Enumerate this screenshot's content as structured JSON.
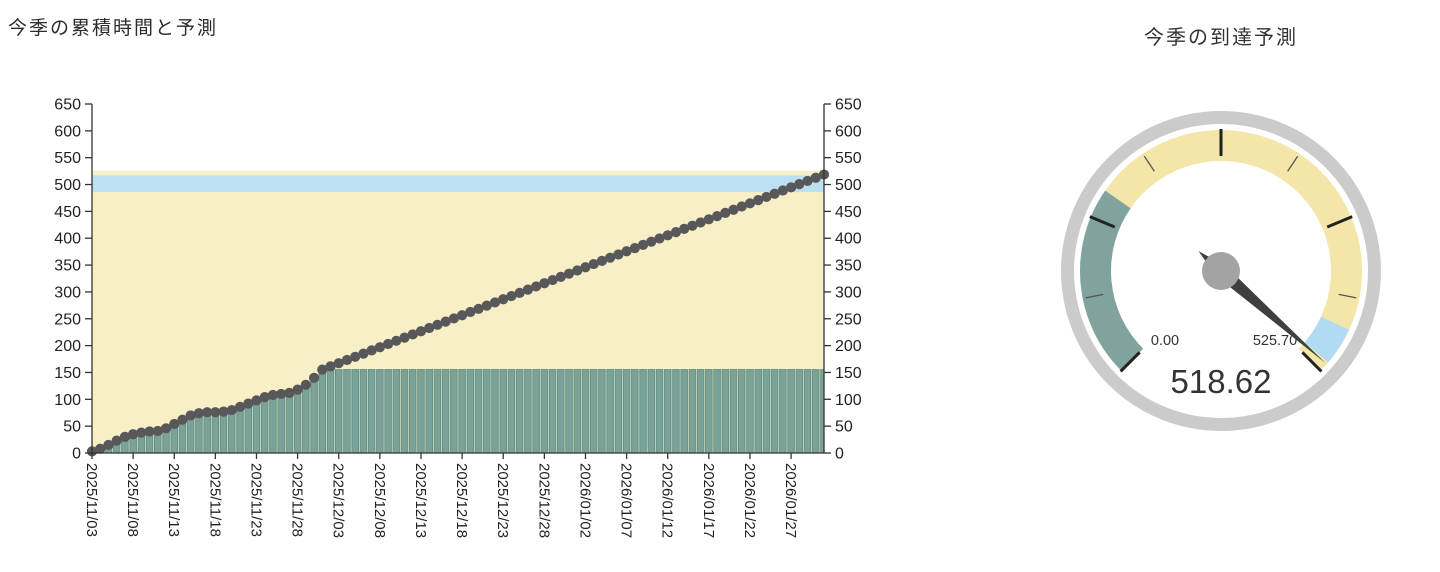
{
  "chart_data": [
    {
      "type": "bar+scatter",
      "title": "今季の累積時間と予測",
      "x_start": "2025/11/03",
      "x_end": "2026/01/31",
      "x_tick_interval_days": 5,
      "x_tick_labels": [
        "2025/11/03",
        "2025/11/08",
        "2025/11/13",
        "2025/11/18",
        "2025/11/23",
        "2025/11/28",
        "2025/12/03",
        "2025/12/08",
        "2025/12/13",
        "2025/12/18",
        "2025/12/23",
        "2025/12/28",
        "2026/01/02",
        "2026/01/07",
        "2026/01/12",
        "2026/01/17",
        "2026/01/22",
        "2026/01/27"
      ],
      "ylim": [
        0,
        650
      ],
      "y_tick_step": 50,
      "y_axis_mirrored": true,
      "grid": false,
      "total_days": 90,
      "background_bands": [
        {
          "name": "forecast-total-band",
          "from": 0,
          "to": 525.7,
          "color": "#F8EFC6"
        },
        {
          "name": "forecast-range-band",
          "from": 486,
          "to": 517,
          "color": "#BCE0F1"
        }
      ],
      "series": [
        {
          "name": "actual-cumulative-bars",
          "type": "bar",
          "color": "#7AA298",
          "edge_color": "#659289",
          "values_by_day": [
            3,
            8,
            15,
            23,
            30,
            35,
            38,
            40,
            41,
            46,
            54,
            62,
            70,
            74,
            76,
            76,
            77,
            80,
            86,
            92,
            98,
            104,
            108,
            110,
            112,
            118,
            127,
            140,
            155.35
          ],
          "carry_forward_value": 155.35
        },
        {
          "name": "cumulative-and-forecast-dots",
          "type": "scatter",
          "color": "#58585A",
          "actual_last_day": 28,
          "actual_final_value": 155.35,
          "forecast_last_day": 89,
          "forecast_end_value": 518.62
        }
      ],
      "axis_color": "#333333",
      "tick_label_color": "#222222"
    },
    {
      "type": "gauge",
      "title": "今季の到達予測",
      "min": 0,
      "max": 525.7,
      "min_label": "0.00",
      "max_label": "525.70",
      "value": 518.62,
      "value_label": "518.62",
      "sweep_degrees": 270,
      "segments": [
        {
          "from": 0,
          "to": 155.35,
          "color": "#80A39E"
        },
        {
          "from": 155.35,
          "to": 486,
          "color": "#F3E6A8"
        },
        {
          "from": 486,
          "to": 517,
          "color": "#B1DBF3"
        },
        {
          "from": 517,
          "to": 525.7,
          "color": "#F3E6A8"
        }
      ],
      "major_tick_count": 5,
      "minor_ticks_between": 1,
      "ring_color": "#CBCBCB",
      "major_tick_color": "#222222",
      "minor_tick_color": "#555555",
      "needle_color": "#3F3F3F",
      "hub_color": "#A3A3A3",
      "value_color": "#333333",
      "label_color": "#333333"
    }
  ]
}
